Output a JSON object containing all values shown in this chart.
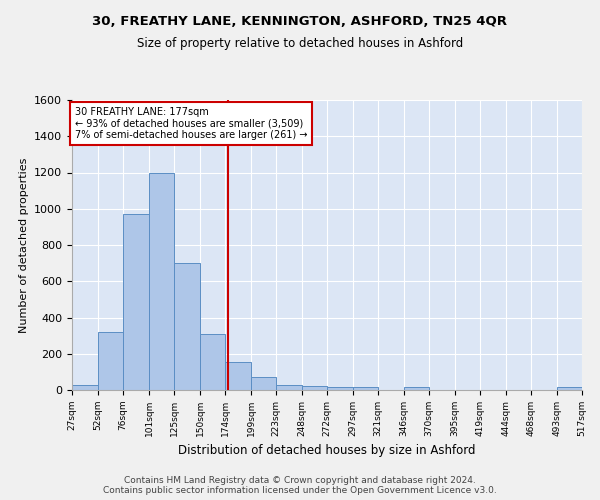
{
  "title": "30, FREATHY LANE, KENNINGTON, ASHFORD, TN25 4QR",
  "subtitle": "Size of property relative to detached houses in Ashford",
  "xlabel": "Distribution of detached houses by size in Ashford",
  "ylabel": "Number of detached properties",
  "bar_color": "#aec6e8",
  "bar_edge_color": "#5b8ec4",
  "background_color": "#dce6f5",
  "grid_color": "#ffffff",
  "annotation_line1": "30 FREATHY LANE: 177sqm",
  "annotation_line2": "← 93% of detached houses are smaller (3,509)",
  "annotation_line3": "7% of semi-detached houses are larger (261) →",
  "property_size": 177,
  "property_line_color": "#cc0000",
  "annotation_box_color": "#ffffff",
  "annotation_box_edge_color": "#cc0000",
  "bin_edges": [
    27,
    52,
    76,
    101,
    125,
    150,
    174,
    199,
    223,
    248,
    272,
    297,
    321,
    346,
    370,
    395,
    419,
    444,
    468,
    493,
    517
  ],
  "bar_heights": [
    30,
    320,
    970,
    1200,
    700,
    310,
    155,
    70,
    30,
    20,
    15,
    15,
    0,
    15,
    0,
    0,
    0,
    0,
    0,
    15
  ],
  "ylim": [
    0,
    1600
  ],
  "yticks": [
    0,
    200,
    400,
    600,
    800,
    1000,
    1200,
    1400,
    1600
  ],
  "footer_line1": "Contains HM Land Registry data © Crown copyright and database right 2024.",
  "footer_line2": "Contains public sector information licensed under the Open Government Licence v3.0."
}
